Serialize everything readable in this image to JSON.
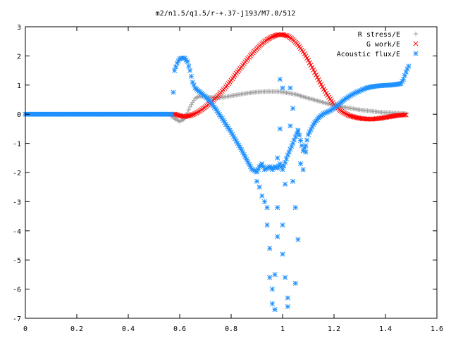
{
  "chart_data": {
    "type": "scatter",
    "title": "m2/n1.5/q1.5/r-+.37-j193/M7.0/512",
    "xlabel": "",
    "ylabel": "",
    "xlim": [
      0,
      1.6
    ],
    "ylim": [
      -7,
      3
    ],
    "x_ticks": [
      "0",
      "0.2",
      "0.4",
      "0.6",
      "0.8",
      "1",
      "1.2",
      "1.4",
      "1.6"
    ],
    "y_ticks": [
      "3",
      "2",
      "1",
      "0",
      "-1",
      "-2",
      "-3",
      "-4",
      "-5",
      "-6",
      "-7"
    ],
    "legend_position": "top-right",
    "grid": false,
    "series": [
      {
        "name": "R stress/E",
        "marker": "plus",
        "color": "#a0a0a0",
        "x": [
          0.56,
          0.58,
          0.6,
          0.62,
          0.64,
          0.66,
          0.68,
          0.7,
          0.72,
          0.74,
          0.76,
          0.78,
          0.8,
          0.82,
          0.84,
          0.86,
          0.88,
          0.9,
          0.92,
          0.94,
          0.96,
          0.98,
          1.0,
          1.02,
          1.04,
          1.06,
          1.08,
          1.1,
          1.12,
          1.14,
          1.16,
          1.18,
          1.2,
          1.22,
          1.24,
          1.26,
          1.28,
          1.3,
          1.32,
          1.34,
          1.36,
          1.38,
          1.4,
          1.42,
          1.44,
          1.46,
          1.48
        ],
        "y": [
          0.0,
          -0.15,
          -0.25,
          -0.15,
          0.25,
          0.55,
          0.62,
          0.6,
          0.58,
          0.57,
          0.57,
          0.6,
          0.63,
          0.66,
          0.69,
          0.72,
          0.74,
          0.76,
          0.77,
          0.78,
          0.78,
          0.78,
          0.76,
          0.73,
          0.7,
          0.66,
          0.6,
          0.55,
          0.5,
          0.45,
          0.4,
          0.35,
          0.3,
          0.27,
          0.24,
          0.21,
          0.18,
          0.15,
          0.13,
          0.11,
          0.09,
          0.07,
          0.06,
          0.05,
          0.04,
          0.03,
          0.02
        ]
      },
      {
        "name": "G work/E",
        "marker": "cross",
        "color": "#ff0000",
        "x": [
          0.56,
          0.58,
          0.6,
          0.62,
          0.64,
          0.66,
          0.68,
          0.7,
          0.72,
          0.74,
          0.76,
          0.78,
          0.8,
          0.82,
          0.84,
          0.86,
          0.88,
          0.9,
          0.92,
          0.94,
          0.96,
          0.98,
          1.0,
          1.02,
          1.04,
          1.06,
          1.08,
          1.1,
          1.12,
          1.14,
          1.16,
          1.18,
          1.2,
          1.22,
          1.24,
          1.26,
          1.28,
          1.3,
          1.32,
          1.34,
          1.36,
          1.38,
          1.4,
          1.42,
          1.44,
          1.46,
          1.48
        ],
        "y": [
          0.0,
          0.0,
          -0.05,
          -0.08,
          -0.05,
          0.02,
          0.12,
          0.25,
          0.4,
          0.56,
          0.74,
          0.94,
          1.16,
          1.4,
          1.62,
          1.85,
          2.06,
          2.25,
          2.42,
          2.56,
          2.66,
          2.72,
          2.73,
          2.68,
          2.56,
          2.38,
          2.14,
          1.85,
          1.52,
          1.18,
          0.86,
          0.58,
          0.34,
          0.16,
          0.04,
          -0.05,
          -0.1,
          -0.14,
          -0.16,
          -0.17,
          -0.16,
          -0.14,
          -0.11,
          -0.08,
          -0.05,
          -0.03,
          -0.02
        ]
      },
      {
        "name": "Acoustic flux/E",
        "marker": "star",
        "color": "#1e90ff",
        "x": [
          0.0,
          0.04,
          0.08,
          0.12,
          0.16,
          0.2,
          0.24,
          0.28,
          0.32,
          0.36,
          0.4,
          0.44,
          0.48,
          0.52,
          0.55,
          0.57,
          0.58,
          0.59,
          0.6,
          0.61,
          0.62,
          0.63,
          0.64,
          0.65,
          0.66,
          0.67,
          0.68,
          0.7,
          0.72,
          0.74,
          0.76,
          0.78,
          0.8,
          0.82,
          0.84,
          0.86,
          0.88,
          0.9,
          0.91,
          0.92,
          0.93,
          0.95,
          0.96,
          0.97,
          0.98,
          0.99,
          1.0,
          1.02,
          1.04,
          1.06,
          1.07,
          1.08,
          1.09,
          1.1,
          1.12,
          1.14,
          1.16,
          1.18,
          1.2,
          1.22,
          1.24,
          1.26,
          1.28,
          1.3,
          1.32,
          1.34,
          1.36,
          1.38,
          1.4,
          1.42,
          1.44,
          1.46,
          1.47,
          1.48,
          1.49
        ],
        "y": [
          0.0,
          0.0,
          0.0,
          0.0,
          0.0,
          0.0,
          0.0,
          0.0,
          0.0,
          0.0,
          0.0,
          0.0,
          0.0,
          0.0,
          0.0,
          0.0,
          1.5,
          1.75,
          1.9,
          1.93,
          1.92,
          1.8,
          1.5,
          1.1,
          0.9,
          0.82,
          0.75,
          0.6,
          0.42,
          0.18,
          -0.08,
          -0.35,
          -0.62,
          -0.92,
          -1.22,
          -1.55,
          -1.88,
          -1.98,
          -1.8,
          -1.7,
          -1.9,
          -1.8,
          -1.9,
          -1.8,
          -1.85,
          -1.7,
          -1.9,
          -1.4,
          -1.0,
          -0.55,
          -0.9,
          -1.25,
          -1.08,
          -0.7,
          -0.35,
          -0.12,
          0.02,
          0.1,
          0.2,
          0.35,
          0.5,
          0.62,
          0.72,
          0.8,
          0.88,
          0.93,
          0.96,
          0.98,
          0.99,
          1.0,
          1.02,
          1.05,
          1.2,
          1.45,
          1.65
        ]
      },
      {
        "name": "",
        "marker": "star",
        "color": "#1e90ff",
        "x": [
          0.9,
          0.91,
          0.92,
          0.93,
          0.94,
          0.94,
          0.95,
          0.95,
          0.96,
          0.96,
          0.97,
          0.97,
          0.98,
          0.98,
          0.98,
          0.99,
          0.99,
          1.0,
          1.0,
          1.0,
          1.01,
          1.01,
          1.02,
          1.02,
          1.03,
          1.03,
          1.04,
          1.04,
          1.05,
          1.05,
          1.06,
          1.06,
          1.07,
          1.08,
          1.09
        ],
        "y": [
          -2.3,
          -2.5,
          -2.8,
          -3.0,
          -3.2,
          -3.8,
          -4.6,
          -5.6,
          -6.0,
          -6.5,
          -6.7,
          -5.5,
          -4.2,
          -3.2,
          -1.5,
          -0.5,
          1.2,
          0.9,
          -3.8,
          -4.8,
          -2.4,
          -5.6,
          -6.3,
          -6.6,
          0.9,
          -0.4,
          0.2,
          -2.3,
          -3.2,
          -5.8,
          -4.3,
          -0.6,
          -1.7,
          -1.9,
          -1.3
        ]
      }
    ]
  }
}
